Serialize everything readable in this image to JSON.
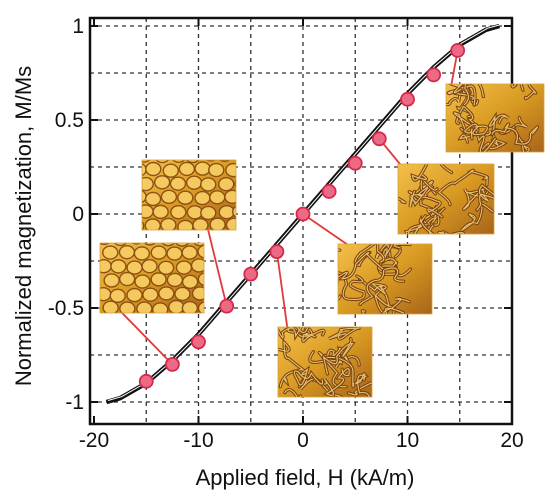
{
  "chart_data": {
    "type": "line",
    "xlabel": "Applied field, H (kA/m)",
    "ylabel": "Normalized magnetization, M/Ms",
    "xlim": [
      -20,
      20
    ],
    "ylim": [
      -1,
      1
    ],
    "x_ticks": [
      -20,
      -10,
      0,
      10,
      20
    ],
    "y_ticks": [
      -1,
      -0.5,
      0,
      0.5,
      1
    ],
    "x_tick_labels": [
      "-20",
      "-10",
      "0",
      "10",
      "20"
    ],
    "y_tick_labels": [
      "-1",
      "-0.5",
      "0",
      "0.5",
      "1"
    ],
    "grid": true,
    "series": [
      {
        "style": "line",
        "x": [
          -18.8,
          -17.5,
          -15,
          -12.5,
          -10,
          -7.5,
          -5,
          -2.5,
          0,
          2.5,
          5,
          7.5,
          10,
          12.5,
          15,
          17.5,
          18.8
        ],
        "y": [
          -1,
          -0.98,
          -0.9,
          -0.78,
          -0.64,
          -0.48,
          -0.32,
          -0.16,
          0,
          0.16,
          0.32,
          0.48,
          0.64,
          0.78,
          0.9,
          0.98,
          1
        ]
      },
      {
        "style": "points",
        "x": [
          -15,
          -12.5,
          -10,
          -7.3,
          -5,
          -2.5,
          0,
          2.5,
          5,
          7.3,
          10,
          12.5,
          14.8
        ],
        "y": [
          -0.89,
          -0.8,
          -0.68,
          -0.49,
          -0.32,
          -0.2,
          0,
          0.12,
          0.27,
          0.4,
          0.61,
          0.74,
          0.87
        ]
      }
    ],
    "colors": {
      "curve": "#111111",
      "marker_fill": "#ec6a86",
      "marker_edge": "#d42a4a",
      "leader": "#e23a3a",
      "grid": "#333333"
    },
    "insets": [
      {
        "pattern": "cells",
        "anchor": [
          -7.3,
          -0.49
        ]
      },
      {
        "pattern": "cells",
        "anchor": [
          -12.5,
          -0.8
        ]
      },
      {
        "pattern": "labyrinth",
        "anchor": [
          -2.5,
          -0.2
        ]
      },
      {
        "pattern": "labyrinth",
        "anchor": [
          0,
          0
        ]
      },
      {
        "pattern": "labyrinth",
        "anchor": [
          7.3,
          0.4
        ]
      },
      {
        "pattern": "labyrinth",
        "anchor": [
          14.8,
          0.87
        ]
      }
    ]
  }
}
